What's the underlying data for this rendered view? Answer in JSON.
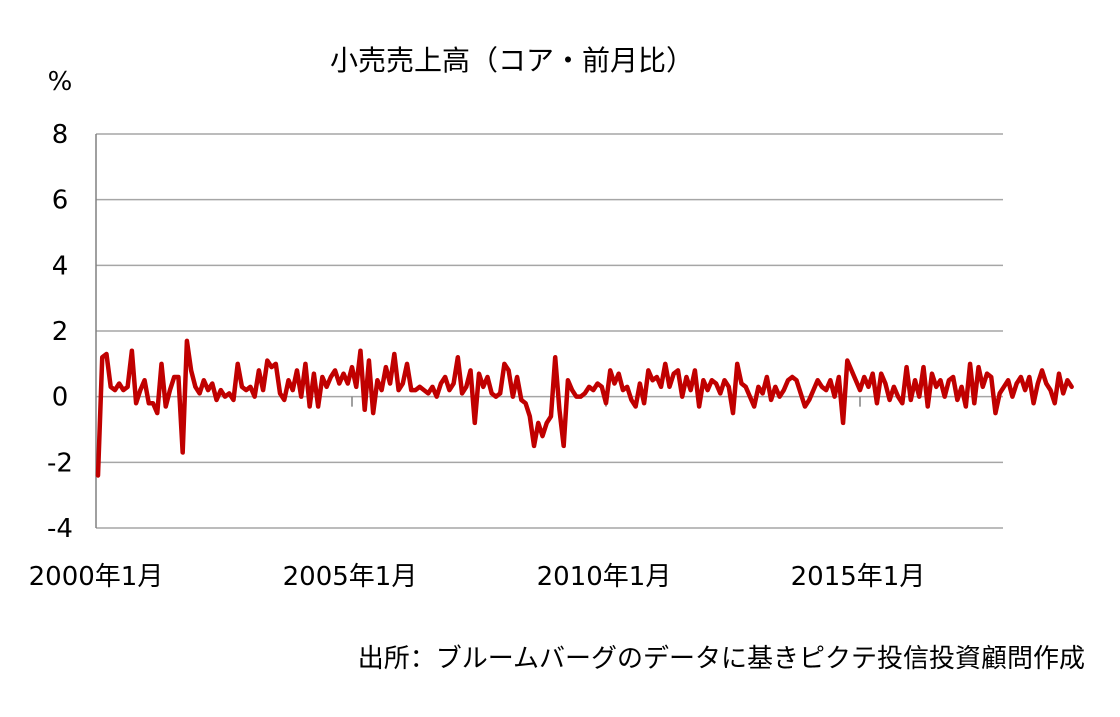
{
  "chart_data": {
    "type": "line",
    "title": "小売売上高（コア・前月比）",
    "ylabel": "%",
    "ylim": [
      -4,
      8
    ],
    "yticks": [
      8,
      6,
      4,
      2,
      0,
      -2,
      -4
    ],
    "xlabels": [
      "2000年1月",
      "2005年1月",
      "2010年1月",
      "2015年1月"
    ],
    "x_start": "2000-01",
    "grid": true,
    "source": "出所：ブルームバーグのデータに基きピクテ投信投資顧問作成",
    "colors": {
      "line": "#c00000",
      "negative_tick": "#ff0000",
      "grid": "#a6a6a6",
      "axis": "#808080"
    },
    "series": [
      {
        "values": [
          -2.4,
          1.2,
          1.3,
          0.3,
          0.2,
          0.4,
          0.2,
          0.3,
          1.4,
          -0.2,
          0.2,
          0.5,
          -0.2,
          -0.2,
          -0.5,
          1.0,
          -0.3,
          0.2,
          0.6,
          0.6,
          -1.7,
          1.7,
          0.8,
          0.3,
          0.1,
          0.5,
          0.2,
          0.4,
          -0.1,
          0.2,
          0.0,
          0.1,
          -0.1,
          1.0,
          0.3,
          0.2,
          0.3,
          0.0,
          0.8,
          0.2,
          1.1,
          0.9,
          1.0,
          0.1,
          -0.1,
          0.5,
          0.2,
          0.8,
          0.0,
          1.0,
          -0.3,
          0.7,
          -0.3,
          0.6,
          0.3,
          0.6,
          0.8,
          0.4,
          0.7,
          0.4,
          0.9,
          0.3,
          1.4,
          -0.4,
          1.1,
          -0.5,
          0.5,
          0.2,
          0.9,
          0.4,
          1.3,
          0.2,
          0.4,
          1.0,
          0.2,
          0.2,
          0.3,
          0.2,
          0.1,
          0.3,
          0.0,
          0.4,
          0.6,
          0.2,
          0.4,
          1.2,
          0.1,
          0.3,
          0.8,
          -0.8,
          0.7,
          0.3,
          0.6,
          0.1,
          0.0,
          0.1,
          1.0,
          0.8,
          0.0,
          0.6,
          -0.1,
          -0.2,
          -0.6,
          -1.5,
          -0.8,
          -1.2,
          -0.8,
          -0.6,
          1.2,
          -0.4,
          -1.5,
          0.5,
          0.2,
          0.0,
          0.0,
          0.1,
          0.3,
          0.2,
          0.4,
          0.3,
          -0.2,
          0.8,
          0.4,
          0.7,
          0.2,
          0.3,
          -0.1,
          -0.3,
          0.4,
          -0.2,
          0.8,
          0.5,
          0.6,
          0.3,
          1.0,
          0.3,
          0.7,
          0.8,
          0.0,
          0.6,
          0.2,
          0.8,
          -0.3,
          0.5,
          0.2,
          0.5,
          0.4,
          0.1,
          0.5,
          0.3,
          -0.5,
          1.0,
          0.4,
          0.3,
          0.0,
          -0.3,
          0.3,
          0.1,
          0.6,
          -0.1,
          0.3,
          0.0,
          0.2,
          0.5,
          0.6,
          0.5,
          0.1,
          -0.3,
          -0.1,
          0.2,
          0.5,
          0.3,
          0.2,
          0.5,
          0.0,
          0.6,
          -0.8,
          1.1,
          0.8,
          0.5,
          0.2,
          0.6,
          0.3,
          0.7,
          -0.2,
          0.7,
          0.4,
          -0.1,
          0.3,
          0.0,
          -0.2,
          0.9,
          -0.1,
          0.5,
          0.0,
          0.9,
          -0.3,
          0.7,
          0.3,
          0.5,
          0.0,
          0.5,
          0.6,
          -0.1,
          0.3,
          -0.3,
          1.0,
          -0.2,
          0.9,
          0.3,
          0.7,
          0.6,
          -0.5,
          0.1,
          0.3,
          0.5,
          0.0,
          0.4,
          0.6,
          0.2,
          0.6,
          -0.2,
          0.4,
          0.8,
          0.4,
          0.2,
          -0.2,
          0.7,
          0.1,
          0.5,
          0.3
        ]
      }
    ]
  }
}
